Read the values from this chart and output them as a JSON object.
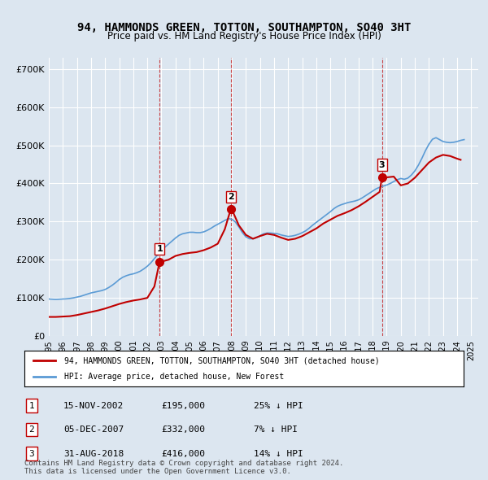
{
  "title": "94, HAMMONDS GREEN, TOTTON, SOUTHAMPTON, SO40 3HT",
  "subtitle": "Price paid vs. HM Land Registry's House Price Index (HPI)",
  "background_color": "#dce6f0",
  "plot_bg_color": "#dce6f0",
  "ylabel_ticks": [
    "£0",
    "£100K",
    "£200K",
    "£300K",
    "£400K",
    "£500K",
    "£600K",
    "£700K"
  ],
  "ytick_values": [
    0,
    100000,
    200000,
    300000,
    400000,
    500000,
    600000,
    700000
  ],
  "ylim": [
    0,
    730000
  ],
  "xlim_start": 1995.0,
  "xlim_end": 2025.5,
  "hpi_color": "#5b9bd5",
  "price_color": "#c00000",
  "vline_color": "#c00000",
  "sale_marker_color": "#c00000",
  "sale_points": [
    {
      "year": 2002.87,
      "price": 195000,
      "label": "1"
    },
    {
      "year": 2007.92,
      "price": 332000,
      "label": "2"
    },
    {
      "year": 2018.66,
      "price": 416000,
      "label": "3"
    }
  ],
  "legend_house_label": "94, HAMMONDS GREEN, TOTTON, SOUTHAMPTON, SO40 3HT (detached house)",
  "legend_hpi_label": "HPI: Average price, detached house, New Forest",
  "table_rows": [
    {
      "num": "1",
      "date": "15-NOV-2002",
      "price": "£195,000",
      "hpi": "25% ↓ HPI"
    },
    {
      "num": "2",
      "date": "05-DEC-2007",
      "price": "£332,000",
      "hpi": "7% ↓ HPI"
    },
    {
      "num": "3",
      "date": "31-AUG-2018",
      "price": "£416,000",
      "hpi": "14% ↓ HPI"
    }
  ],
  "footer": "Contains HM Land Registry data © Crown copyright and database right 2024.\nThis data is licensed under the Open Government Licence v3.0.",
  "hpi_data": {
    "years": [
      1995.0,
      1995.25,
      1995.5,
      1995.75,
      1996.0,
      1996.25,
      1996.5,
      1996.75,
      1997.0,
      1997.25,
      1997.5,
      1997.75,
      1998.0,
      1998.25,
      1998.5,
      1998.75,
      1999.0,
      1999.25,
      1999.5,
      1999.75,
      2000.0,
      2000.25,
      2000.5,
      2000.75,
      2001.0,
      2001.25,
      2001.5,
      2001.75,
      2002.0,
      2002.25,
      2002.5,
      2002.75,
      2003.0,
      2003.25,
      2003.5,
      2003.75,
      2004.0,
      2004.25,
      2004.5,
      2004.75,
      2005.0,
      2005.25,
      2005.5,
      2005.75,
      2006.0,
      2006.25,
      2006.5,
      2006.75,
      2007.0,
      2007.25,
      2007.5,
      2007.75,
      2008.0,
      2008.25,
      2008.5,
      2008.75,
      2009.0,
      2009.25,
      2009.5,
      2009.75,
      2010.0,
      2010.25,
      2010.5,
      2010.75,
      2011.0,
      2011.25,
      2011.5,
      2011.75,
      2012.0,
      2012.25,
      2012.5,
      2012.75,
      2013.0,
      2013.25,
      2013.5,
      2013.75,
      2014.0,
      2014.25,
      2014.5,
      2014.75,
      2015.0,
      2015.25,
      2015.5,
      2015.75,
      2016.0,
      2016.25,
      2016.5,
      2016.75,
      2017.0,
      2017.25,
      2017.5,
      2017.75,
      2018.0,
      2018.25,
      2018.5,
      2018.75,
      2019.0,
      2019.25,
      2019.5,
      2019.75,
      2020.0,
      2020.25,
      2020.5,
      2020.75,
      2021.0,
      2021.25,
      2021.5,
      2021.75,
      2022.0,
      2022.25,
      2022.5,
      2022.75,
      2023.0,
      2023.25,
      2023.5,
      2023.75,
      2024.0,
      2024.25,
      2024.5
    ],
    "values": [
      97000,
      96500,
      96000,
      96500,
      97000,
      97500,
      98500,
      100000,
      102000,
      104000,
      107000,
      110000,
      113000,
      115000,
      117000,
      119000,
      122000,
      127000,
      133000,
      140000,
      148000,
      154000,
      158000,
      161000,
      163000,
      166000,
      170000,
      176000,
      183000,
      192000,
      203000,
      214000,
      224000,
      233000,
      241000,
      249000,
      257000,
      264000,
      268000,
      270000,
      272000,
      272000,
      271000,
      271000,
      273000,
      277000,
      282000,
      288000,
      293000,
      298000,
      303000,
      308000,
      306000,
      299000,
      286000,
      271000,
      260000,
      255000,
      255000,
      258000,
      263000,
      268000,
      270000,
      270000,
      269000,
      268000,
      265000,
      263000,
      261000,
      262000,
      264000,
      267000,
      271000,
      276000,
      283000,
      291000,
      298000,
      305000,
      312000,
      319000,
      326000,
      334000,
      340000,
      344000,
      347000,
      350000,
      352000,
      354000,
      357000,
      362000,
      368000,
      374000,
      380000,
      386000,
      390000,
      393000,
      396000,
      400000,
      405000,
      410000,
      413000,
      411000,
      414000,
      422000,
      433000,
      448000,
      466000,
      486000,
      503000,
      516000,
      520000,
      515000,
      510000,
      508000,
      507000,
      508000,
      510000,
      513000,
      515000
    ]
  },
  "price_line_data": {
    "years": [
      1995.0,
      1995.5,
      1996.0,
      1996.5,
      1997.0,
      1997.5,
      1998.0,
      1998.5,
      1999.0,
      1999.5,
      2000.0,
      2000.5,
      2001.0,
      2001.5,
      2002.0,
      2002.5,
      2002.87,
      2003.0,
      2003.5,
      2004.0,
      2004.5,
      2005.0,
      2005.5,
      2006.0,
      2006.5,
      2007.0,
      2007.5,
      2007.92,
      2008.0,
      2008.5,
      2009.0,
      2009.5,
      2010.0,
      2010.5,
      2011.0,
      2011.5,
      2012.0,
      2012.5,
      2013.0,
      2013.5,
      2014.0,
      2014.5,
      2015.0,
      2015.5,
      2016.0,
      2016.5,
      2017.0,
      2017.5,
      2018.0,
      2018.5,
      2018.66,
      2019.0,
      2019.5,
      2020.0,
      2020.5,
      2021.0,
      2021.5,
      2022.0,
      2022.5,
      2023.0,
      2023.5,
      2024.0,
      2024.25
    ],
    "values": [
      50000,
      50000,
      51000,
      52000,
      55000,
      59000,
      63000,
      67000,
      72000,
      78000,
      84000,
      89000,
      93000,
      96000,
      100000,
      130000,
      195000,
      195000,
      200000,
      210000,
      215000,
      218000,
      220000,
      225000,
      232000,
      242000,
      280000,
      332000,
      332000,
      290000,
      265000,
      255000,
      262000,
      268000,
      265000,
      258000,
      252000,
      255000,
      262000,
      272000,
      282000,
      295000,
      305000,
      315000,
      322000,
      330000,
      340000,
      352000,
      365000,
      378000,
      416000,
      416000,
      418000,
      395000,
      400000,
      415000,
      435000,
      455000,
      468000,
      475000,
      472000,
      465000,
      462000
    ]
  }
}
